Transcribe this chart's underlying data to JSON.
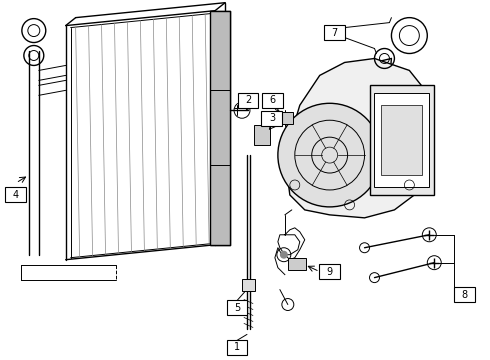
{
  "bg_color": "#ffffff",
  "line_color": "#000000",
  "figsize": [
    4.9,
    3.6
  ],
  "dpi": 100,
  "gray_fill": "#cccccc",
  "light_gray": "#e8e8e8",
  "mid_gray": "#aaaaaa"
}
